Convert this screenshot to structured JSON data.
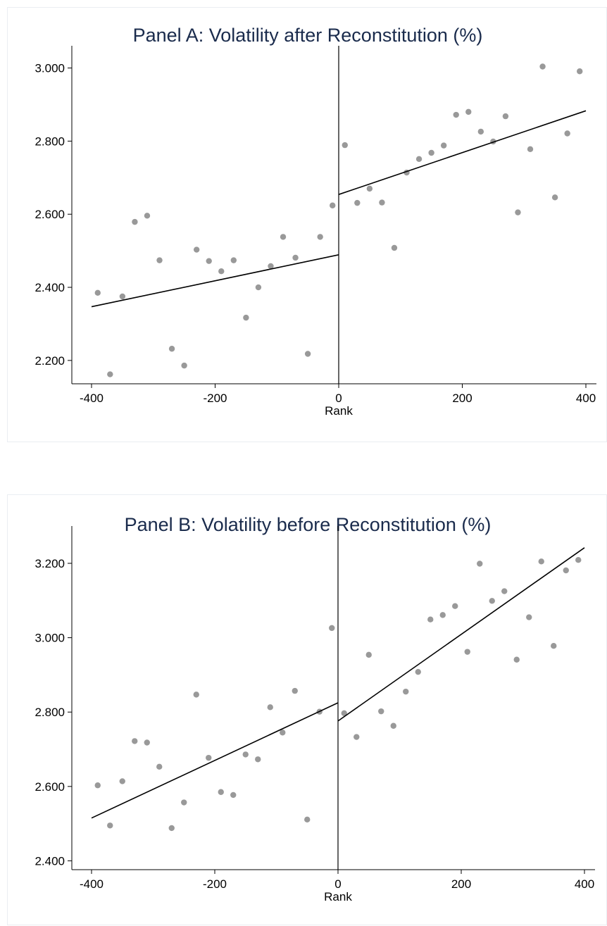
{
  "chart_data": [
    {
      "type": "scatter",
      "title": "Panel A: Volatility after Reconstitution (%)",
      "xlabel": "Rank",
      "ylabel": "",
      "xlim": [
        -400,
        400
      ],
      "ylim": [
        2.14,
        3.03
      ],
      "x_ticks": [
        "-400",
        "-200",
        "0",
        "200",
        "400"
      ],
      "y_ticks": [
        "2.200",
        "2.400",
        "2.600",
        "2.800",
        "3.000"
      ],
      "cutoff_x": 0,
      "points": [
        [
          -390,
          2.385
        ],
        [
          -370,
          2.162
        ],
        [
          -350,
          2.375
        ],
        [
          -330,
          2.579
        ],
        [
          -310,
          2.596
        ],
        [
          -290,
          2.474
        ],
        [
          -270,
          2.232
        ],
        [
          -250,
          2.186
        ],
        [
          -230,
          2.503
        ],
        [
          -210,
          2.472
        ],
        [
          -190,
          2.444
        ],
        [
          -170,
          2.474
        ],
        [
          -150,
          2.317
        ],
        [
          -130,
          2.4
        ],
        [
          -110,
          2.458
        ],
        [
          -90,
          2.538
        ],
        [
          -70,
          2.481
        ],
        [
          -50,
          2.218
        ],
        [
          -30,
          2.538
        ],
        [
          -10,
          2.624
        ],
        [
          10,
          2.789
        ],
        [
          30,
          2.631
        ],
        [
          50,
          2.67
        ],
        [
          70,
          2.632
        ],
        [
          90,
          2.508
        ],
        [
          110,
          2.714
        ],
        [
          130,
          2.751
        ],
        [
          150,
          2.768
        ],
        [
          170,
          2.788
        ],
        [
          190,
          2.872
        ],
        [
          210,
          2.88
        ],
        [
          230,
          2.826
        ],
        [
          250,
          2.799
        ],
        [
          270,
          2.868
        ],
        [
          290,
          2.605
        ],
        [
          310,
          2.778
        ],
        [
          330,
          3.004
        ],
        [
          350,
          2.646
        ],
        [
          370,
          2.821
        ],
        [
          390,
          2.991
        ]
      ],
      "fit_left": [
        [
          -400,
          2.347
        ],
        [
          0,
          2.489
        ]
      ],
      "fit_right": [
        [
          0,
          2.654
        ],
        [
          400,
          2.883
        ]
      ],
      "point_color": "#999999",
      "line_color": "#000000",
      "grid": false
    },
    {
      "type": "scatter",
      "title": "Panel B: Volatility before Reconstitution (%)",
      "xlabel": "Rank",
      "ylabel": "",
      "xlim": [
        -400,
        400
      ],
      "ylim": [
        2.38,
        3.27
      ],
      "x_ticks": [
        "-400",
        "-200",
        "0",
        "200",
        "400"
      ],
      "y_ticks": [
        "2.400",
        "2.600",
        "2.800",
        "3.000",
        "3.200"
      ],
      "cutoff_x": 0,
      "points": [
        [
          -390,
          2.603
        ],
        [
          -370,
          2.495
        ],
        [
          -350,
          2.614
        ],
        [
          -330,
          2.722
        ],
        [
          -310,
          2.718
        ],
        [
          -290,
          2.653
        ],
        [
          -270,
          2.488
        ],
        [
          -250,
          2.557
        ],
        [
          -230,
          2.847
        ],
        [
          -210,
          2.677
        ],
        [
          -190,
          2.585
        ],
        [
          -170,
          2.577
        ],
        [
          -150,
          2.686
        ],
        [
          -130,
          2.673
        ],
        [
          -110,
          2.813
        ],
        [
          -90,
          2.745
        ],
        [
          -70,
          2.857
        ],
        [
          -50,
          2.511
        ],
        [
          -30,
          2.801
        ],
        [
          -10,
          3.026
        ],
        [
          10,
          2.797
        ],
        [
          30,
          2.733
        ],
        [
          50,
          2.954
        ],
        [
          70,
          2.802
        ],
        [
          90,
          2.763
        ],
        [
          110,
          2.855
        ],
        [
          130,
          2.908
        ],
        [
          150,
          3.049
        ],
        [
          170,
          3.061
        ],
        [
          190,
          3.085
        ],
        [
          210,
          2.962
        ],
        [
          230,
          3.199
        ],
        [
          250,
          3.099
        ],
        [
          270,
          3.125
        ],
        [
          290,
          2.941
        ],
        [
          310,
          3.055
        ],
        [
          330,
          3.205
        ],
        [
          350,
          2.978
        ],
        [
          370,
          3.181
        ],
        [
          390,
          3.209
        ]
      ],
      "fit_left": [
        [
          -400,
          2.515
        ],
        [
          0,
          2.825
        ]
      ],
      "fit_right": [
        [
          0,
          2.776
        ],
        [
          400,
          3.242
        ]
      ],
      "point_color": "#999999",
      "line_color": "#000000",
      "grid": false
    }
  ]
}
